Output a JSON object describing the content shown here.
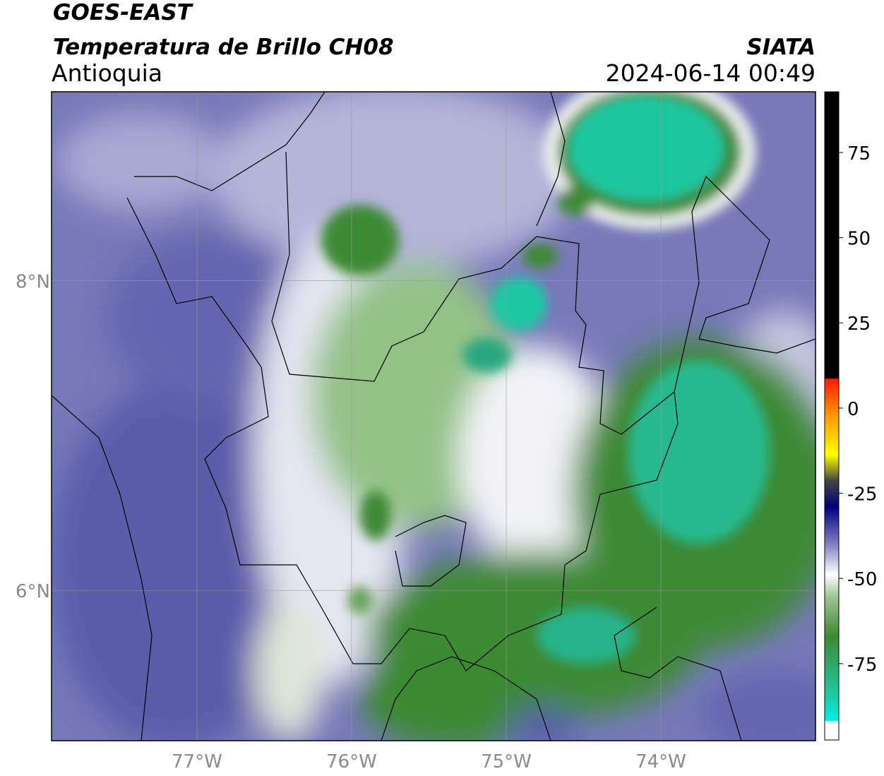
{
  "header": {
    "title": "GOES-EAST",
    "subtitle": "Temperatura de Brillo CH08",
    "region": "Antioquia",
    "source": "SIATA",
    "datetime": "2024-06-14 00:49"
  },
  "map": {
    "xlim": [
      -77.94,
      -73.0
    ],
    "ylim": [
      5.03,
      9.22
    ],
    "xticks": [
      {
        "value": -77,
        "label": "77°W"
      },
      {
        "value": -76,
        "label": "76°W"
      },
      {
        "value": -75,
        "label": "75°W"
      },
      {
        "value": -74,
        "label": "74°W"
      }
    ],
    "yticks": [
      {
        "value": 8,
        "label": "8°N"
      },
      {
        "value": 6,
        "label": "6°N"
      }
    ],
    "grid": true
  },
  "colorbar": {
    "lim": [
      -97.4,
      92.8
    ],
    "ticks": [
      75,
      50,
      25,
      0,
      -25,
      -50,
      -75
    ]
  }
}
